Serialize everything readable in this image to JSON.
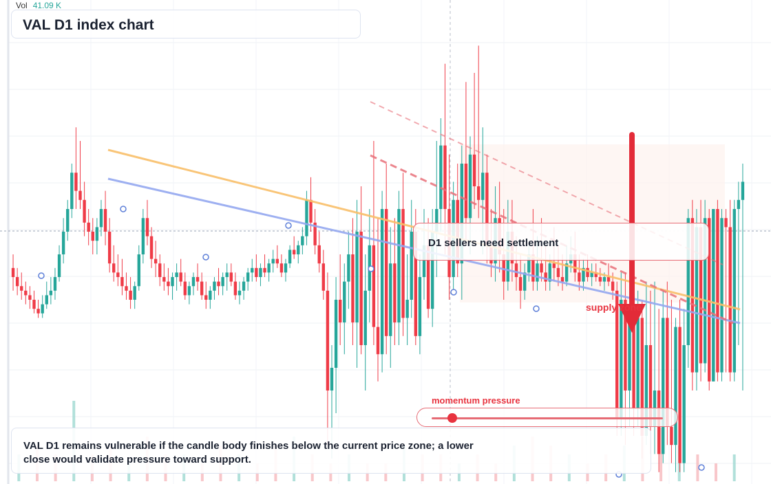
{
  "volume": {
    "label": "Vol",
    "value": "41.09 K"
  },
  "title": "VAL D1 index chart",
  "callout": "D1 sellers need settlement",
  "zone_label": "supply zone",
  "momentum": {
    "label": "momentum pressure",
    "level": 0.09
  },
  "commentary": "VAL D1 remains vulnerable if the candle body finishes below the current price zone; a lower close would validate pressure toward support.",
  "colors": {
    "bull": "#26a69a",
    "bear": "#ef3b47",
    "resistance": "#f9bf6a",
    "trend": "#94a8f0",
    "channel": "#e8707a",
    "arrow": "#e32b38"
  },
  "chart_data": {
    "type": "candlestick",
    "timeframe": "D1",
    "ylim": [
      0,
      100
    ],
    "candles_ohlc": [
      [
        47,
        50,
        42,
        45
      ],
      [
        45,
        47,
        41,
        43
      ],
      [
        43,
        46,
        40,
        42
      ],
      [
        42,
        44,
        39,
        41
      ],
      [
        41,
        43,
        38,
        40
      ],
      [
        40,
        42,
        37,
        38
      ],
      [
        38,
        40,
        36,
        37
      ],
      [
        37,
        41,
        36,
        39
      ],
      [
        39,
        44,
        38,
        41
      ],
      [
        41,
        45,
        39,
        42
      ],
      [
        42,
        47,
        40,
        45
      ],
      [
        45,
        52,
        44,
        50
      ],
      [
        50,
        58,
        48,
        55
      ],
      [
        55,
        62,
        53,
        60
      ],
      [
        60,
        70,
        58,
        68
      ],
      [
        68,
        78,
        60,
        64
      ],
      [
        64,
        75,
        60,
        62
      ],
      [
        62,
        66,
        54,
        57
      ],
      [
        57,
        60,
        52,
        55
      ],
      [
        55,
        58,
        50,
        53
      ],
      [
        53,
        58,
        50,
        56
      ],
      [
        56,
        62,
        54,
        60
      ],
      [
        60,
        64,
        52,
        55
      ],
      [
        55,
        58,
        46,
        48
      ],
      [
        48,
        52,
        44,
        46
      ],
      [
        46,
        50,
        43,
        45
      ],
      [
        45,
        49,
        41,
        43
      ],
      [
        43,
        46,
        40,
        42
      ],
      [
        42,
        45,
        38,
        40
      ],
      [
        40,
        44,
        38,
        43
      ],
      [
        43,
        52,
        42,
        50
      ],
      [
        50,
        60,
        48,
        58
      ],
      [
        58,
        62,
        52,
        54
      ],
      [
        54,
        56,
        47,
        49
      ],
      [
        49,
        53,
        45,
        48
      ],
      [
        48,
        50,
        43,
        45
      ],
      [
        45,
        48,
        42,
        44
      ],
      [
        44,
        47,
        41,
        43
      ],
      [
        43,
        46,
        40,
        45
      ],
      [
        45,
        48,
        42,
        46
      ],
      [
        46,
        49,
        43,
        44
      ],
      [
        44,
        46,
        40,
        41
      ],
      [
        41,
        44,
        39,
        43
      ],
      [
        43,
        46,
        41,
        45
      ],
      [
        45,
        48,
        42,
        44
      ],
      [
        44,
        46,
        40,
        41
      ],
      [
        41,
        44,
        38,
        40
      ],
      [
        40,
        43,
        38,
        42
      ],
      [
        42,
        45,
        40,
        44
      ],
      [
        44,
        47,
        41,
        43
      ],
      [
        43,
        46,
        41,
        45
      ],
      [
        45,
        48,
        42,
        46
      ],
      [
        46,
        48,
        43,
        44
      ],
      [
        44,
        46,
        40,
        41
      ],
      [
        41,
        44,
        39,
        42
      ],
      [
        42,
        45,
        40,
        44
      ],
      [
        44,
        47,
        42,
        46
      ],
      [
        46,
        49,
        44,
        47
      ],
      [
        47,
        50,
        44,
        45
      ],
      [
        45,
        48,
        43,
        47
      ],
      [
        47,
        50,
        45,
        46
      ],
      [
        46,
        49,
        44,
        48
      ],
      [
        48,
        51,
        46,
        49
      ],
      [
        49,
        52,
        47,
        48
      ],
      [
        48,
        50,
        45,
        46
      ],
      [
        46,
        49,
        44,
        48
      ],
      [
        48,
        52,
        47,
        51
      ],
      [
        51,
        54,
        49,
        50
      ],
      [
        50,
        53,
        48,
        52
      ],
      [
        52,
        56,
        50,
        54
      ],
      [
        54,
        64,
        52,
        62
      ],
      [
        62,
        67,
        55,
        57
      ],
      [
        57,
        60,
        50,
        52
      ],
      [
        52,
        55,
        46,
        48
      ],
      [
        48,
        51,
        40,
        42
      ],
      [
        42,
        46,
        8,
        20
      ],
      [
        20,
        30,
        5,
        25
      ],
      [
        25,
        45,
        15,
        40
      ],
      [
        40,
        50,
        30,
        35
      ],
      [
        35,
        48,
        28,
        44
      ],
      [
        44,
        55,
        38,
        50
      ],
      [
        50,
        58,
        30,
        35
      ],
      [
        35,
        62,
        25,
        55
      ],
      [
        55,
        65,
        28,
        30
      ],
      [
        30,
        50,
        20,
        42
      ],
      [
        42,
        60,
        35,
        52
      ],
      [
        52,
        75,
        30,
        34
      ],
      [
        34,
        58,
        22,
        28
      ],
      [
        28,
        64,
        24,
        60
      ],
      [
        60,
        70,
        28,
        32
      ],
      [
        32,
        56,
        25,
        48
      ],
      [
        48,
        58,
        30,
        35
      ],
      [
        35,
        64,
        30,
        60
      ],
      [
        60,
        68,
        32,
        36
      ],
      [
        36,
        50,
        30,
        40
      ],
      [
        40,
        62,
        36,
        55
      ],
      [
        55,
        60,
        30,
        32
      ],
      [
        32,
        50,
        28,
        45
      ],
      [
        45,
        60,
        40,
        52
      ],
      [
        52,
        58,
        36,
        38
      ],
      [
        38,
        60,
        34,
        55
      ],
      [
        55,
        75,
        45,
        60
      ],
      [
        60,
        80,
        55,
        74
      ],
      [
        74,
        92,
        50,
        60
      ],
      [
        60,
        72,
        40,
        45
      ],
      [
        45,
        66,
        42,
        62
      ],
      [
        62,
        70,
        45,
        48
      ],
      [
        48,
        74,
        40,
        70
      ],
      [
        70,
        88,
        52,
        58
      ],
      [
        58,
        76,
        50,
        72
      ],
      [
        72,
        90,
        60,
        65
      ],
      [
        65,
        96,
        58,
        62
      ],
      [
        62,
        78,
        50,
        68
      ],
      [
        68,
        72,
        48,
        52
      ],
      [
        52,
        60,
        45,
        48
      ],
      [
        48,
        65,
        44,
        58
      ],
      [
        58,
        66,
        46,
        50
      ],
      [
        50,
        60,
        40,
        44
      ],
      [
        44,
        62,
        42,
        55
      ],
      [
        55,
        62,
        44,
        48
      ],
      [
        48,
        54,
        42,
        45
      ],
      [
        45,
        50,
        38,
        42
      ],
      [
        42,
        48,
        40,
        46
      ],
      [
        46,
        52,
        44,
        50
      ],
      [
        50,
        60,
        42,
        44
      ],
      [
        44,
        54,
        42,
        48
      ],
      [
        48,
        58,
        44,
        46
      ],
      [
        46,
        52,
        42,
        44
      ],
      [
        44,
        50,
        42,
        48
      ],
      [
        48,
        56,
        44,
        47
      ],
      [
        47,
        52,
        43,
        45
      ],
      [
        45,
        50,
        42,
        44
      ],
      [
        44,
        52,
        43,
        48
      ],
      [
        48,
        54,
        46,
        50
      ],
      [
        50,
        55,
        44,
        46
      ],
      [
        46,
        50,
        42,
        44
      ],
      [
        44,
        49,
        42,
        47
      ],
      [
        47,
        50,
        44,
        45
      ],
      [
        45,
        48,
        43,
        46
      ],
      [
        46,
        48,
        44,
        45
      ],
      [
        45,
        47,
        43,
        44
      ],
      [
        44,
        46,
        42,
        45
      ],
      [
        45,
        48,
        43,
        44
      ],
      [
        44,
        46,
        40,
        42
      ],
      [
        42,
        44,
        10,
        14
      ],
      [
        14,
        46,
        10,
        40
      ],
      [
        40,
        46,
        8,
        20
      ],
      [
        20,
        42,
        12,
        38
      ],
      [
        38,
        44,
        10,
        16
      ],
      [
        16,
        42,
        12,
        36
      ],
      [
        36,
        40,
        5,
        10
      ],
      [
        10,
        44,
        8,
        30
      ],
      [
        30,
        42,
        6,
        12
      ],
      [
        12,
        44,
        6,
        20
      ],
      [
        20,
        38,
        2,
        6
      ],
      [
        6,
        42,
        4,
        36
      ],
      [
        36,
        44,
        8,
        12
      ],
      [
        12,
        40,
        4,
        8
      ],
      [
        8,
        36,
        2,
        34
      ],
      [
        34,
        40,
        2,
        4
      ],
      [
        4,
        38,
        2,
        30
      ],
      [
        30,
        60,
        25,
        58
      ],
      [
        58,
        62,
        20,
        24
      ],
      [
        24,
        60,
        20,
        56
      ],
      [
        56,
        62,
        22,
        26
      ],
      [
        26,
        62,
        24,
        58
      ],
      [
        58,
        60,
        20,
        22
      ],
      [
        22,
        58,
        22,
        60
      ],
      [
        60,
        62,
        22,
        24
      ],
      [
        24,
        60,
        22,
        58
      ],
      [
        58,
        60,
        24,
        56
      ],
      [
        56,
        62,
        22,
        24
      ],
      [
        24,
        62,
        22,
        60
      ],
      [
        60,
        66,
        30,
        62
      ],
      [
        62,
        70,
        20,
        66
      ]
    ],
    "markers": [
      "support-low",
      "bounce",
      "pivot",
      "breakout",
      "pivot",
      "breakdown",
      "pivot",
      "pivot",
      "pivot",
      "pivot"
    ],
    "volume_bars": [
      3,
      4,
      3,
      9,
      3,
      4,
      2,
      5,
      3,
      3,
      2,
      4,
      3,
      2,
      4,
      5,
      3,
      2,
      3,
      2,
      2,
      4,
      3,
      3,
      2,
      3,
      2,
      4,
      5,
      4,
      3,
      2,
      3,
      4,
      5,
      6,
      4,
      3,
      2,
      3
    ]
  }
}
